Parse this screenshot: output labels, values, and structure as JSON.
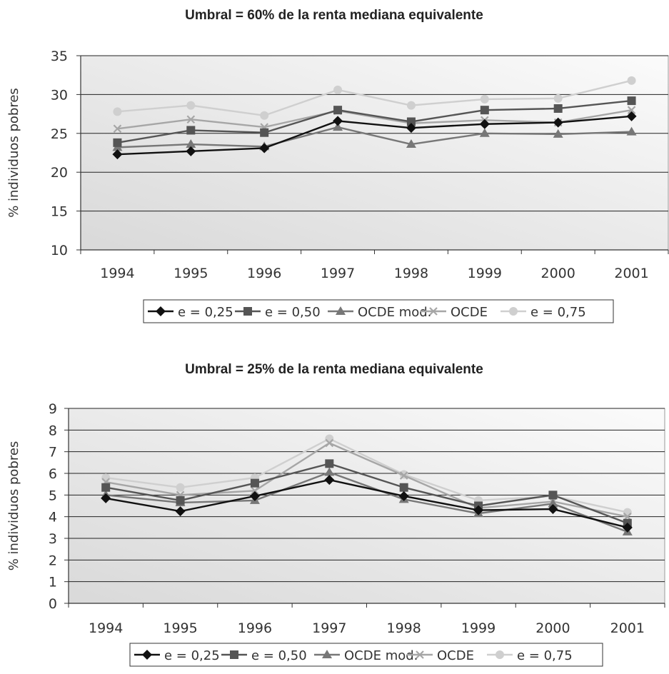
{
  "chart_data": [
    {
      "type": "line",
      "title": "Umbral = 60% de la renta mediana equivalente",
      "xlabel": "",
      "ylabel": "% individuos pobres",
      "ylim": [
        10,
        35
      ],
      "yticks": [
        "10",
        "15",
        "20",
        "25",
        "30",
        "35"
      ],
      "categories": [
        "1994",
        "1995",
        "1996",
        "1997",
        "1998",
        "1999",
        "2000",
        "2001"
      ],
      "grid": "horizontal",
      "legend_position": "bottom",
      "series": [
        {
          "name": "e = 0,25",
          "color": "#111111",
          "marker": "diamond",
          "values": [
            22.3,
            22.7,
            23.1,
            26.6,
            25.7,
            26.2,
            26.4,
            27.2
          ]
        },
        {
          "name": "e = 0,50",
          "color": "#555555",
          "marker": "square",
          "values": [
            23.8,
            25.4,
            25.1,
            28.0,
            26.5,
            28.0,
            28.2,
            29.2
          ]
        },
        {
          "name": "OCDE mod.",
          "color": "#777777",
          "marker": "triangle",
          "values": [
            23.2,
            23.6,
            23.3,
            25.8,
            23.6,
            25.0,
            24.9,
            25.2
          ]
        },
        {
          "name": "OCDE",
          "color": "#a6a6a6",
          "marker": "x",
          "values": [
            25.6,
            26.8,
            25.8,
            27.9,
            26.3,
            26.7,
            26.4,
            28.0
          ]
        },
        {
          "name": "e = 0,75",
          "color": "#cfcfcf",
          "marker": "circle",
          "values": [
            27.8,
            28.6,
            27.3,
            30.6,
            28.6,
            29.4,
            29.5,
            31.8
          ]
        }
      ]
    },
    {
      "type": "line",
      "title": "Umbral = 25% de la renta mediana equivalente",
      "xlabel": "",
      "ylabel": "% individuos pobres",
      "ylim": [
        0,
        9
      ],
      "yticks": [
        "0",
        "1",
        "2",
        "3",
        "4",
        "5",
        "6",
        "7",
        "8",
        "9"
      ],
      "categories": [
        "1994",
        "1995",
        "1996",
        "1997",
        "1998",
        "1999",
        "2000",
        "2001"
      ],
      "grid": "horizontal",
      "legend_position": "bottom",
      "series": [
        {
          "name": "e = 0,25",
          "color": "#111111",
          "marker": "diamond",
          "values": [
            4.85,
            4.25,
            4.95,
            5.7,
            4.95,
            4.3,
            4.35,
            3.5
          ]
        },
        {
          "name": "e = 0,50",
          "color": "#555555",
          "marker": "square",
          "values": [
            5.35,
            4.75,
            5.55,
            6.45,
            5.35,
            4.5,
            5.0,
            3.7
          ]
        },
        {
          "name": "OCDE mod.",
          "color": "#777777",
          "marker": "triangle",
          "values": [
            5.0,
            4.65,
            4.75,
            6.05,
            4.8,
            4.15,
            4.6,
            3.3
          ]
        },
        {
          "name": "OCDE",
          "color": "#a6a6a6",
          "marker": "x",
          "values": [
            5.6,
            5.0,
            5.2,
            7.4,
            5.9,
            4.4,
            4.7,
            4.0
          ]
        },
        {
          "name": "e = 0,75",
          "color": "#cfcfcf",
          "marker": "circle",
          "values": [
            5.8,
            5.35,
            5.8,
            7.6,
            5.95,
            4.75,
            4.95,
            4.2
          ]
        }
      ]
    }
  ]
}
